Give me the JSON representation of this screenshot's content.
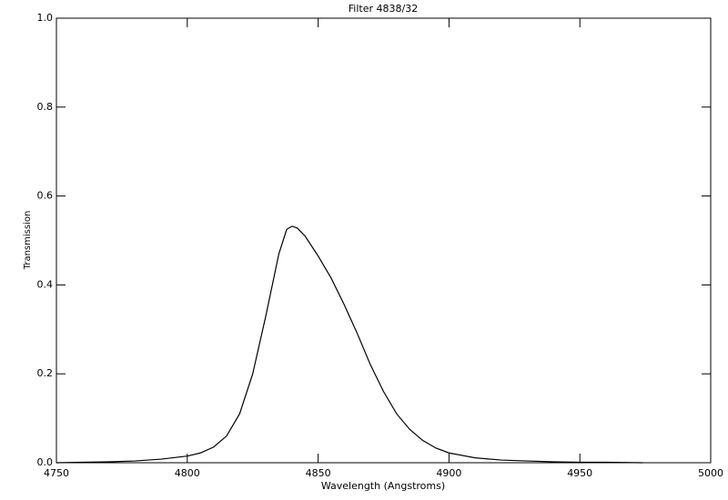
{
  "chart_data": {
    "type": "line",
    "title": "Filter 4838/32",
    "x_label": "Wavelength (Angstroms)",
    "y_label": "Transmission",
    "xlim": [
      4750,
      5000
    ],
    "ylim": [
      0,
      1
    ],
    "xticks": [
      4750,
      4800,
      4850,
      4900,
      4950,
      5000
    ],
    "yticks": [
      {
        "value": 0,
        "label": "0.0"
      },
      0.2,
      0.4,
      0.6,
      0.8,
      {
        "value": 1,
        "label": "1.0"
      }
    ],
    "series": [
      {
        "color": "#000000",
        "x": [
          4750,
          4770,
          4780,
          4790,
          4800,
          4805,
          4810,
          4815,
          4820,
          4825,
          4830,
          4835,
          4838,
          4840,
          4842,
          4845,
          4850,
          4855,
          4860,
          4865,
          4870,
          4875,
          4880,
          4885,
          4890,
          4895,
          4900,
          4910,
          4920,
          4930,
          4940,
          4950,
          4960,
          4974
        ],
        "values": [
          0,
          0.002,
          0.004,
          0.008,
          0.015,
          0.022,
          0.035,
          0.06,
          0.11,
          0.2,
          0.33,
          0.47,
          0.525,
          0.532,
          0.528,
          0.51,
          0.465,
          0.415,
          0.355,
          0.29,
          0.22,
          0.16,
          0.11,
          0.075,
          0.05,
          0.033,
          0.022,
          0.011,
          0.006,
          0.004,
          0.002,
          0.001,
          0.001,
          0
        ]
      }
    ]
  }
}
